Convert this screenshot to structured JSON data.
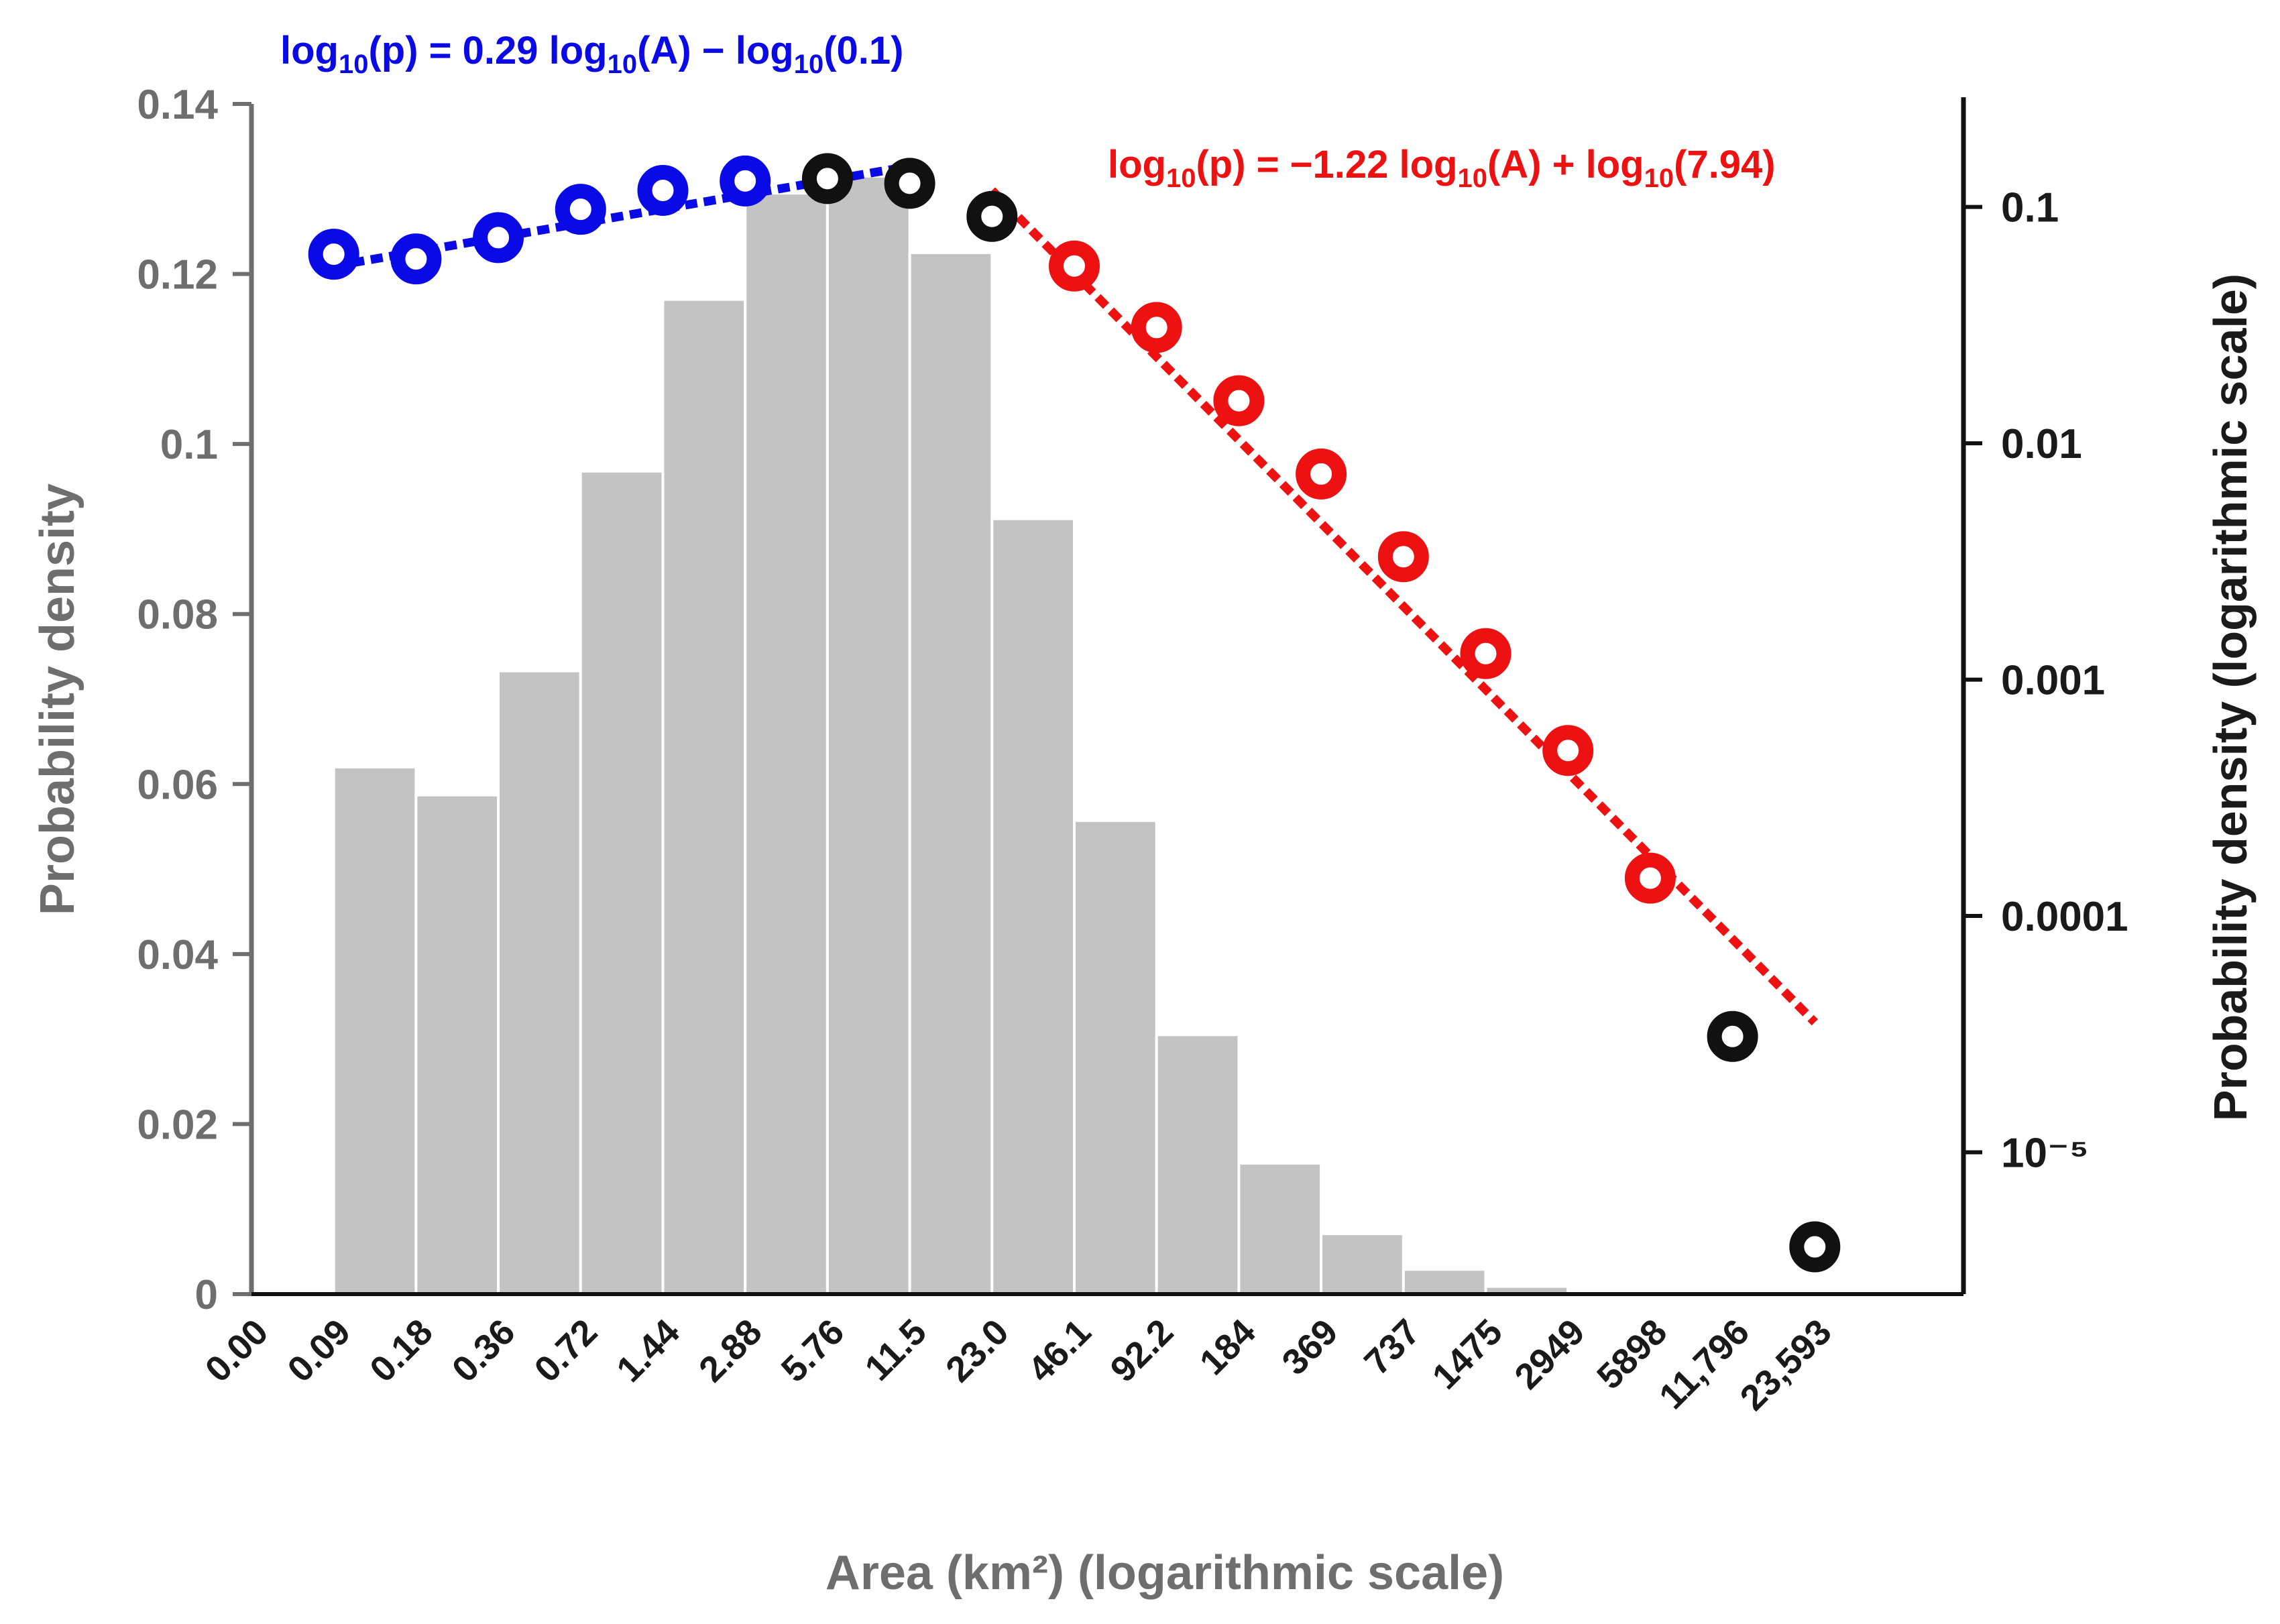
{
  "chart_data": {
    "type": "bar",
    "title": "",
    "xlabel": "Area (km²) (logarithmic scale)",
    "ylabel_left": "Probability density",
    "ylabel_right": "Probability density (logarithmic scale)",
    "categories": [
      "0.00",
      "0.09",
      "0.18",
      "0.36",
      "0.72",
      "1.44",
      "2.88",
      "5.76",
      "11.5",
      "23.0",
      "46.1",
      "92.2",
      "184",
      "369",
      "737",
      "1475",
      "2949",
      "5898",
      "11,796",
      "23,593"
    ],
    "histogram": {
      "name": "Probability density",
      "color": "#c3c3c3",
      "values": [
        0.062,
        0.0587,
        0.0733,
        0.0968,
        0.117,
        0.1295,
        0.1315,
        0.1225,
        0.0912,
        0.0557,
        0.0305,
        0.0154,
        0.0071,
        0.0029,
        0.0009,
        0.0002,
        0.0002,
        0.0002,
        0.0002
      ]
    },
    "ylim_left": [
      0,
      0.14
    ],
    "yticks_left": [
      "0",
      "0.02",
      "0.04",
      "0.06",
      "0.08",
      "0.1",
      "0.12",
      "0.14"
    ],
    "ylim_right_log10": [
      -5.6,
      -0.55
    ],
    "yticks_right": [
      {
        "label": "0.1",
        "log10": -1
      },
      {
        "label": "0.01",
        "log10": -2
      },
      {
        "label": "0.001",
        "log10": -3
      },
      {
        "label": "0.0001",
        "log10": -4
      },
      {
        "label": "10⁻⁵",
        "log10": -5
      }
    ],
    "scatter": [
      {
        "bin": 1,
        "log10p": -1.2,
        "group": "blue"
      },
      {
        "bin": 2,
        "log10p": -1.22,
        "group": "blue"
      },
      {
        "bin": 3,
        "log10p": -1.13,
        "group": "blue"
      },
      {
        "bin": 4,
        "log10p": -1.01,
        "group": "blue"
      },
      {
        "bin": 5,
        "log10p": -0.93,
        "group": "blue"
      },
      {
        "bin": 6,
        "log10p": -0.89,
        "group": "blue"
      },
      {
        "bin": 7,
        "log10p": -0.88,
        "group": "black"
      },
      {
        "bin": 8,
        "log10p": -0.9,
        "group": "black"
      },
      {
        "bin": 9,
        "log10p": -1.04,
        "group": "black"
      },
      {
        "bin": 10,
        "log10p": -1.25,
        "group": "red"
      },
      {
        "bin": 11,
        "log10p": -1.51,
        "group": "red"
      },
      {
        "bin": 12,
        "log10p": -1.82,
        "group": "red"
      },
      {
        "bin": 13,
        "log10p": -2.13,
        "group": "red"
      },
      {
        "bin": 14,
        "log10p": -2.48,
        "group": "red"
      },
      {
        "bin": 15,
        "log10p": -2.89,
        "group": "red"
      },
      {
        "bin": 16,
        "log10p": -3.3,
        "group": "red"
      },
      {
        "bin": 17,
        "log10p": -3.84,
        "group": "red"
      },
      {
        "bin": 18,
        "log10p": -4.51,
        "group": "black"
      },
      {
        "bin": 19,
        "log10p": -5.4,
        "group": "black"
      }
    ],
    "fits": [
      {
        "name": "low-area fit",
        "color": "#0a0ae6",
        "equation": {
          "pre": "log",
          "sub1": "10",
          "mid1": "(p) = 0.29 log",
          "sub2": "10",
          "mid2": "(A) − log",
          "sub3": "10",
          "post": "(0.1)"
        },
        "start": {
          "bin": 1,
          "log10p": -1.25
        },
        "end": {
          "bin": 7.8,
          "log10p": -0.84
        }
      },
      {
        "name": "high-area fit",
        "color": "#ee1111",
        "equation": {
          "pre": "log",
          "sub1": "10",
          "mid1": "(p) = −1.22 log",
          "sub2": "10",
          "mid2": "(A) + log",
          "sub3": "10",
          "post": "(7.94)"
        },
        "start": {
          "bin": 9,
          "log10p": -0.93
        },
        "end": {
          "bin": 19,
          "log10p": -4.45
        }
      }
    ],
    "colors": {
      "blue": "#0a0ae6",
      "red": "#ee1111",
      "black": "#111111",
      "bar": "#c3c3c3",
      "left_axis": "#6e6e6e",
      "right_axis": "#111111"
    }
  }
}
